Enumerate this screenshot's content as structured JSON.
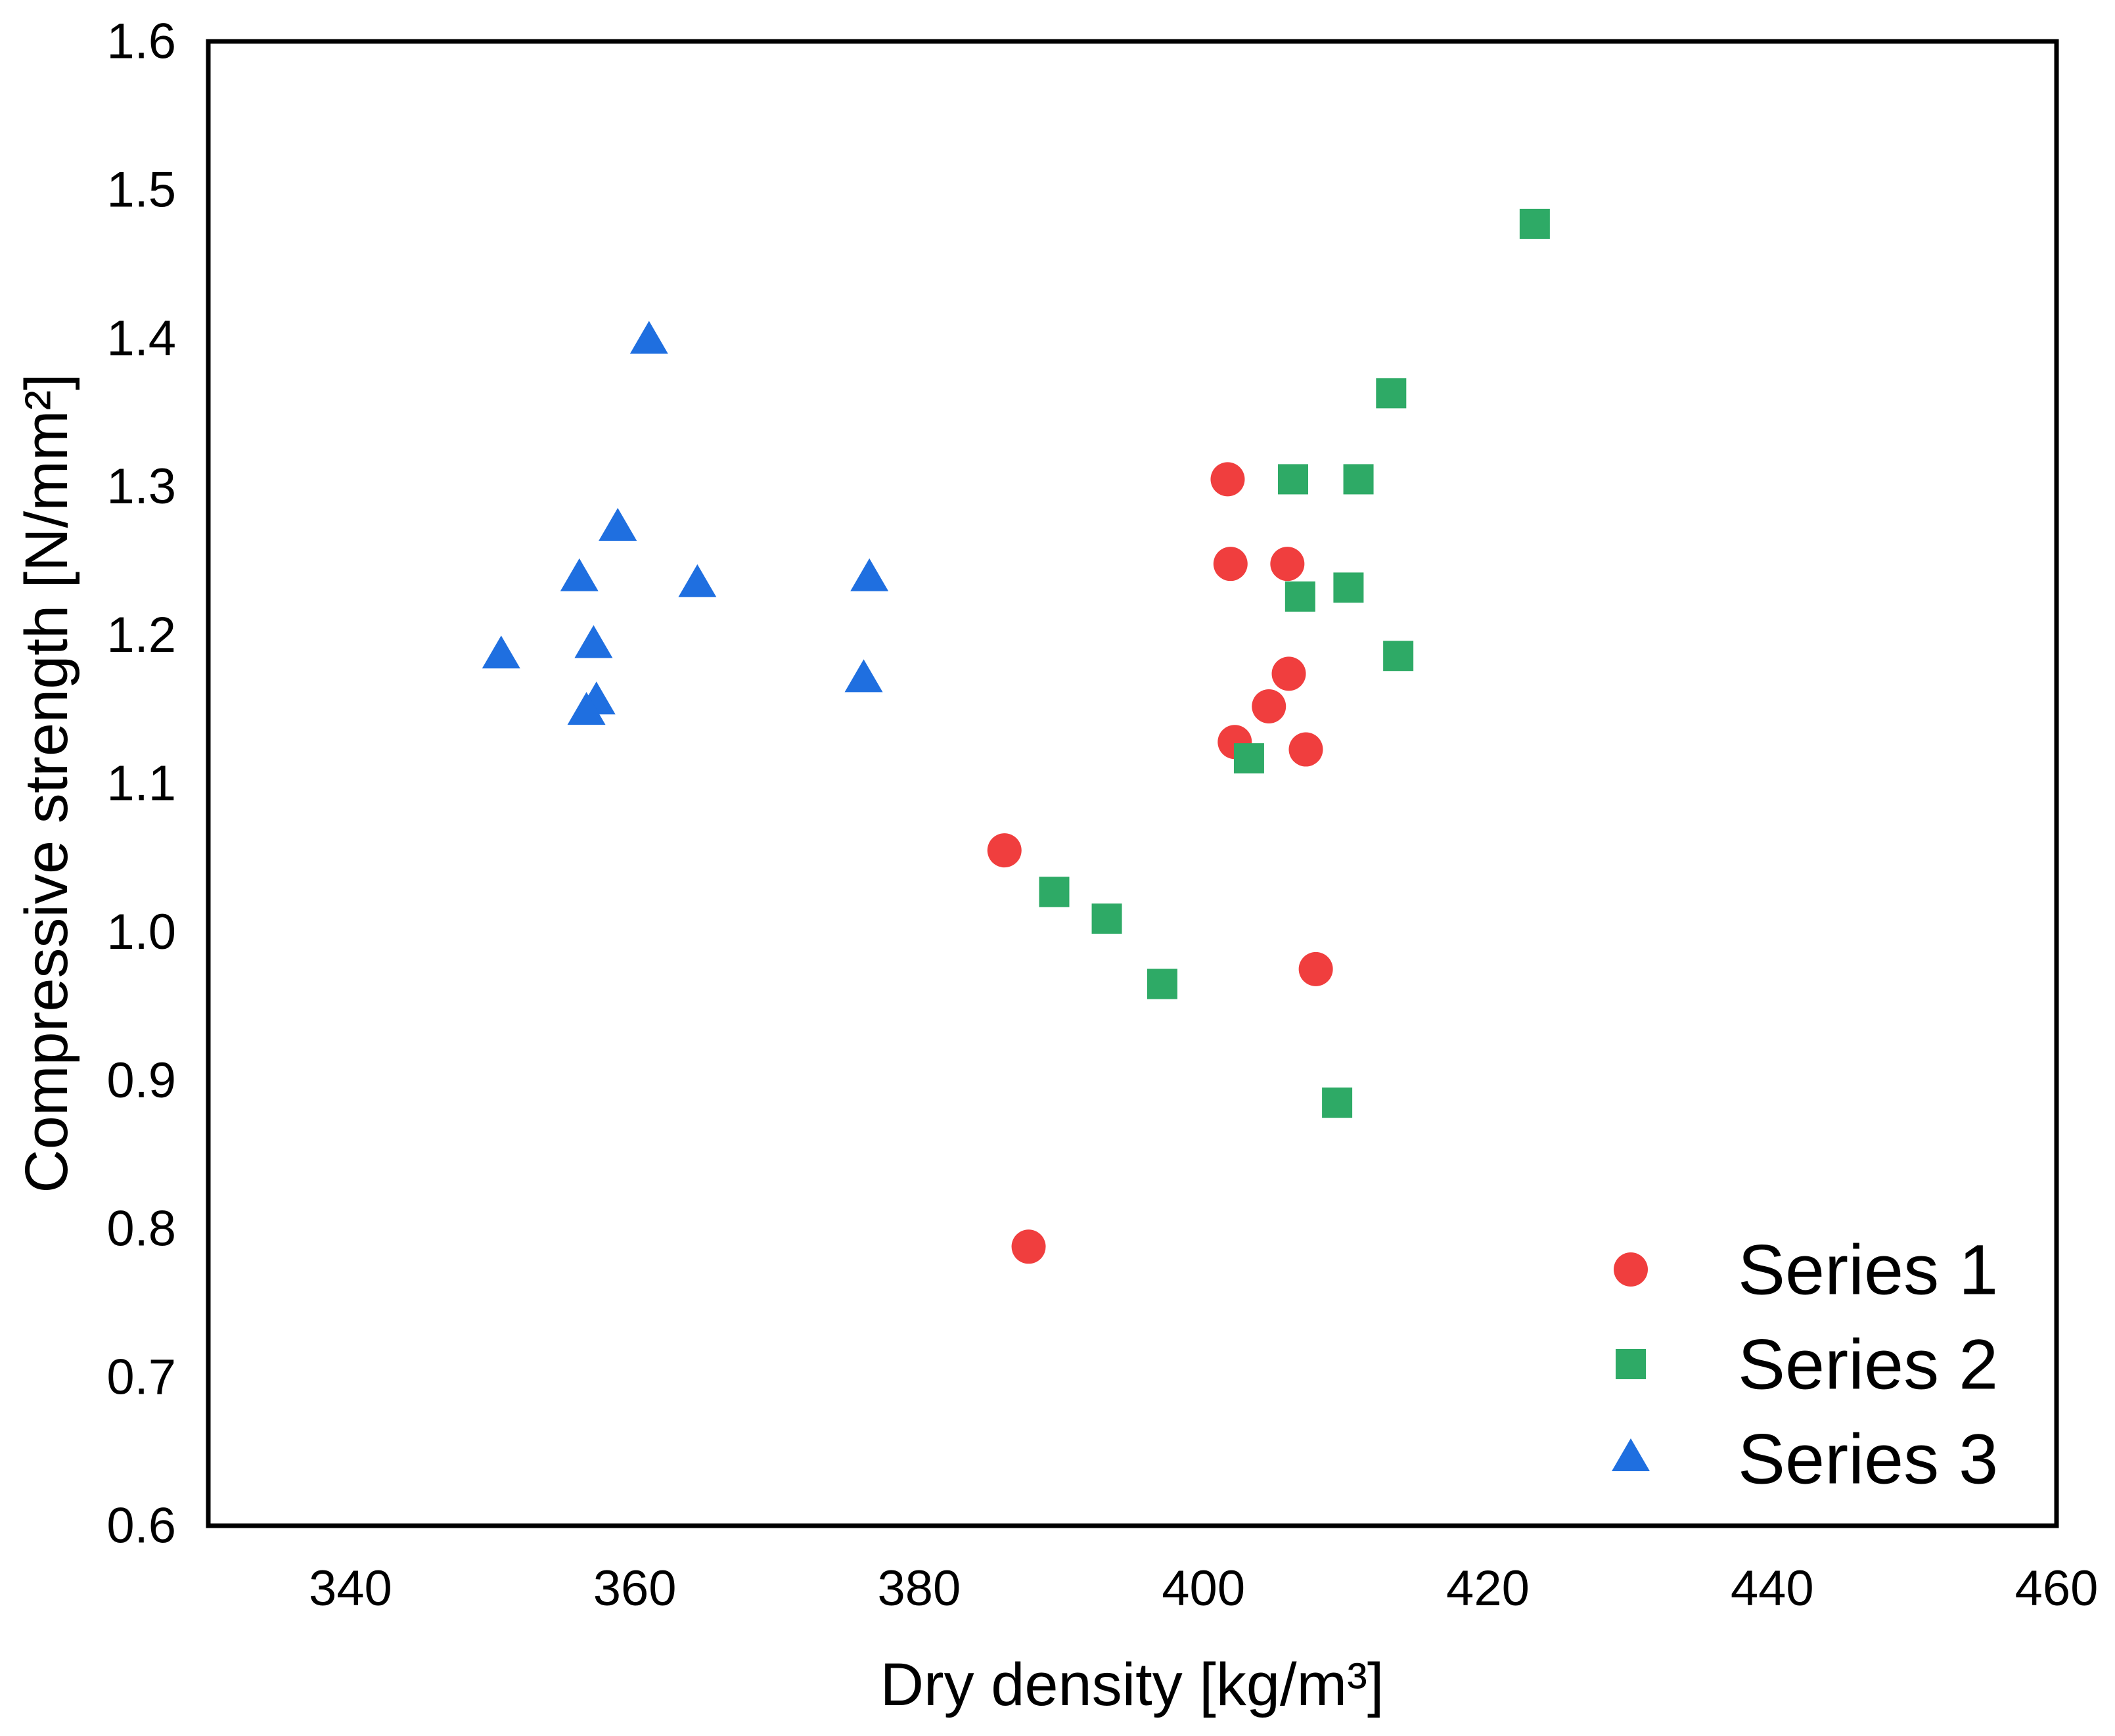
{
  "chart_data": {
    "type": "scatter",
    "title": "",
    "xlabel": "Dry density [kg/m³]",
    "ylabel": "Compressive strength [N/mm²]",
    "xlim": [
      330,
      460
    ],
    "ylim": [
      0.6,
      1.6
    ],
    "xticks": [
      340,
      360,
      380,
      400,
      420,
      440,
      460
    ],
    "yticks": [
      0.6,
      0.7,
      0.8,
      0.9,
      1.0,
      1.1,
      1.2,
      1.3,
      1.4,
      1.5,
      1.6
    ],
    "xtick_labels": [
      "340",
      "360",
      "380",
      "400",
      "420",
      "440",
      "460"
    ],
    "ytick_labels": [
      "0.6",
      "0.7",
      "0.8",
      "0.9",
      "1.0",
      "1.1",
      "1.2",
      "1.3",
      "1.4",
      "1.5",
      "1.6"
    ],
    "grid": false,
    "legend_position": "bottom-right",
    "series": [
      {
        "name": "Series 1",
        "marker": "circle",
        "color": "#f03e3e",
        "points": [
          {
            "x": 401.7,
            "y": 1.305
          },
          {
            "x": 401.9,
            "y": 1.248
          },
          {
            "x": 405.9,
            "y": 1.248
          },
          {
            "x": 406.0,
            "y": 1.174
          },
          {
            "x": 404.6,
            "y": 1.152
          },
          {
            "x": 402.2,
            "y": 1.128
          },
          {
            "x": 407.2,
            "y": 1.123
          },
          {
            "x": 386.0,
            "y": 1.055
          },
          {
            "x": 407.9,
            "y": 0.975
          },
          {
            "x": 387.7,
            "y": 0.788
          }
        ]
      },
      {
        "name": "Series 2",
        "marker": "square",
        "color": "#2eaa66",
        "points": [
          {
            "x": 423.3,
            "y": 1.477
          },
          {
            "x": 413.2,
            "y": 1.363
          },
          {
            "x": 406.3,
            "y": 1.305
          },
          {
            "x": 410.9,
            "y": 1.305
          },
          {
            "x": 410.2,
            "y": 1.232
          },
          {
            "x": 406.8,
            "y": 1.226
          },
          {
            "x": 413.7,
            "y": 1.186
          },
          {
            "x": 403.2,
            "y": 1.117
          },
          {
            "x": 389.5,
            "y": 1.027
          },
          {
            "x": 393.2,
            "y": 1.009
          },
          {
            "x": 397.1,
            "y": 0.965
          },
          {
            "x": 409.4,
            "y": 0.885
          }
        ]
      },
      {
        "name": "Series 3",
        "marker": "triangle",
        "color": "#1f6fe0",
        "points": [
          {
            "x": 361.0,
            "y": 1.398
          },
          {
            "x": 358.8,
            "y": 1.272
          },
          {
            "x": 356.1,
            "y": 1.238
          },
          {
            "x": 364.4,
            "y": 1.234
          },
          {
            "x": 376.5,
            "y": 1.238
          },
          {
            "x": 357.1,
            "y": 1.193
          },
          {
            "x": 350.6,
            "y": 1.186
          },
          {
            "x": 376.1,
            "y": 1.17
          },
          {
            "x": 357.3,
            "y": 1.155
          },
          {
            "x": 356.6,
            "y": 1.148
          }
        ]
      }
    ]
  }
}
